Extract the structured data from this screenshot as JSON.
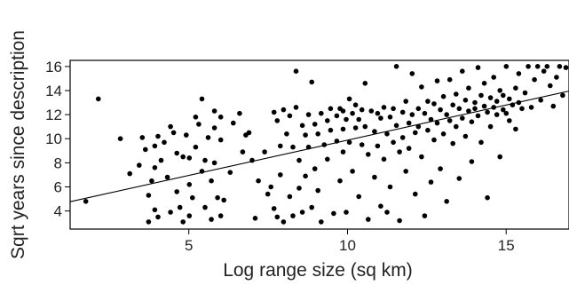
{
  "chart_data": {
    "type": "scatter",
    "title": "",
    "xlabel": "Log range size (sq km)",
    "ylabel": "Sqrt years since description",
    "xlim": [
      1.3,
      17.2
    ],
    "ylim": [
      2.5,
      16.5
    ],
    "x_ticks": [
      5,
      10,
      15
    ],
    "x_tick_labels": [
      "5",
      "10",
      "15"
    ],
    "y_ticks": [
      4,
      6,
      8,
      10,
      12,
      14,
      16
    ],
    "y_tick_labels": [
      "4",
      "6",
      "8",
      "10",
      "12",
      "14",
      "16"
    ],
    "grid": false,
    "legend": "none",
    "colors": {
      "points": "#000000",
      "axis": "#000000",
      "trendline": "#000000"
    },
    "trendline": {
      "x": [
        1.3,
        17.2
      ],
      "y": [
        4.77,
        13.95
      ]
    },
    "points": [
      [
        1.8,
        4.8
      ],
      [
        2.2,
        13.3
      ],
      [
        2.9,
        10.0
      ],
      [
        3.2,
        7.1
      ],
      [
        3.5,
        7.8
      ],
      [
        3.6,
        10.1
      ],
      [
        3.7,
        9.1
      ],
      [
        3.8,
        5.3
      ],
      [
        3.8,
        3.1
      ],
      [
        3.9,
        6.5
      ],
      [
        4.0,
        9.4
      ],
      [
        4.0,
        7.6
      ],
      [
        4.0,
        4.1
      ],
      [
        4.1,
        3.5
      ],
      [
        4.1,
        10.2
      ],
      [
        4.2,
        8.2
      ],
      [
        4.3,
        9.7
      ],
      [
        4.4,
        6.8
      ],
      [
        4.5,
        11.0
      ],
      [
        4.5,
        3.9
      ],
      [
        4.6,
        10.5
      ],
      [
        4.7,
        8.8
      ],
      [
        4.7,
        5.6
      ],
      [
        4.8,
        4.3
      ],
      [
        4.9,
        8.5
      ],
      [
        4.9,
        3.1
      ],
      [
        5.0,
        10.3
      ],
      [
        5.1,
        3.6
      ],
      [
        5.1,
        8.4
      ],
      [
        5.1,
        6.2
      ],
      [
        5.2,
        5.1
      ],
      [
        5.3,
        9.3
      ],
      [
        5.3,
        11.8
      ],
      [
        5.4,
        11.2
      ],
      [
        5.5,
        13.3
      ],
      [
        5.5,
        7.3
      ],
      [
        5.6,
        8.2
      ],
      [
        5.6,
        4.3
      ],
      [
        5.7,
        10.1
      ],
      [
        5.8,
        6.5
      ],
      [
        5.8,
        3.3
      ],
      [
        5.9,
        12.3
      ],
      [
        5.9,
        10.9
      ],
      [
        5.9,
        8.0
      ],
      [
        6.0,
        5.1
      ],
      [
        6.1,
        3.6
      ],
      [
        6.1,
        9.9
      ],
      [
        6.1,
        11.8
      ],
      [
        6.2,
        4.9
      ],
      [
        6.4,
        7.2
      ],
      [
        6.5,
        11.3
      ],
      [
        6.7,
        12.1
      ],
      [
        6.8,
        8.9
      ],
      [
        6.9,
        10.3
      ],
      [
        7.0,
        10.5
      ],
      [
        7.1,
        8.2
      ],
      [
        7.2,
        3.4
      ],
      [
        7.3,
        6.5
      ],
      [
        7.5,
        8.9
      ],
      [
        7.6,
        5.4
      ],
      [
        7.7,
        6.0
      ],
      [
        7.8,
        4.2
      ],
      [
        7.8,
        12.2
      ],
      [
        7.9,
        11.5
      ],
      [
        7.9,
        3.5
      ],
      [
        8.0,
        9.4
      ],
      [
        8.0,
        7.0
      ],
      [
        8.1,
        12.4
      ],
      [
        8.1,
        3.1
      ],
      [
        8.2,
        10.4
      ],
      [
        8.3,
        11.9
      ],
      [
        8.3,
        5.2
      ],
      [
        8.4,
        9.3
      ],
      [
        8.4,
        3.6
      ],
      [
        8.5,
        12.6
      ],
      [
        8.5,
        15.6
      ],
      [
        8.6,
        8.2
      ],
      [
        8.6,
        5.9
      ],
      [
        8.7,
        11.1
      ],
      [
        8.7,
        3.9
      ],
      [
        8.8,
        10.3
      ],
      [
        8.8,
        6.9
      ],
      [
        8.9,
        12.0
      ],
      [
        8.9,
        9.3
      ],
      [
        9.0,
        14.7
      ],
      [
        9.0,
        4.3
      ],
      [
        9.1,
        11.2
      ],
      [
        9.1,
        7.5
      ],
      [
        9.2,
        10.4
      ],
      [
        9.2,
        5.7
      ],
      [
        9.3,
        12.1
      ],
      [
        9.3,
        3.1
      ],
      [
        9.4,
        9.5
      ],
      [
        9.5,
        11.5
      ],
      [
        9.5,
        8.3
      ],
      [
        9.6,
        12.5
      ],
      [
        9.6,
        10.7
      ],
      [
        9.7,
        3.8
      ],
      [
        9.8,
        11.9
      ],
      [
        9.8,
        9.8
      ],
      [
        9.9,
        6.5
      ],
      [
        9.9,
        12.5
      ],
      [
        10.0,
        10.8
      ],
      [
        10.0,
        8.9
      ],
      [
        10.0,
        12.3
      ],
      [
        10.1,
        11.6
      ],
      [
        10.1,
        3.9
      ],
      [
        10.2,
        9.7
      ],
      [
        10.2,
        13.3
      ],
      [
        10.3,
        12.1
      ],
      [
        10.3,
        7.3
      ],
      [
        10.4,
        10.9
      ],
      [
        10.4,
        12.8
      ],
      [
        10.5,
        11.6
      ],
      [
        10.5,
        5.2
      ],
      [
        10.6,
        9.5
      ],
      [
        10.6,
        12.4
      ],
      [
        10.7,
        14.6
      ],
      [
        10.7,
        11.0
      ],
      [
        10.8,
        8.7
      ],
      [
        10.8,
        3.3
      ],
      [
        10.9,
        12.3
      ],
      [
        11.0,
        10.6
      ],
      [
        11.0,
        6.8
      ],
      [
        11.1,
        12.1
      ],
      [
        11.1,
        9.4
      ],
      [
        11.2,
        4.4
      ],
      [
        11.2,
        11.7
      ],
      [
        11.3,
        12.6
      ],
      [
        11.3,
        8.3
      ],
      [
        11.4,
        10.4
      ],
      [
        11.4,
        3.9
      ],
      [
        11.5,
        11.8
      ],
      [
        11.5,
        6.0
      ],
      [
        11.6,
        12.5
      ],
      [
        11.6,
        9.7
      ],
      [
        11.7,
        16.0
      ],
      [
        11.7,
        11.1
      ],
      [
        11.8,
        8.9
      ],
      [
        11.8,
        3.2
      ],
      [
        11.9,
        12.2
      ],
      [
        11.9,
        10.1
      ],
      [
        12.0,
        13.1
      ],
      [
        12.0,
        7.3
      ],
      [
        12.1,
        11.3
      ],
      [
        12.1,
        9.2
      ],
      [
        12.2,
        15.4
      ],
      [
        12.2,
        12.0
      ],
      [
        12.3,
        10.5
      ],
      [
        12.3,
        5.4
      ],
      [
        12.4,
        12.5
      ],
      [
        12.4,
        11.0
      ],
      [
        12.5,
        14.3
      ],
      [
        12.5,
        8.5
      ],
      [
        12.6,
        12.1
      ],
      [
        12.6,
        3.6
      ],
      [
        12.7,
        10.7
      ],
      [
        12.7,
        13.1
      ],
      [
        12.8,
        11.6
      ],
      [
        12.8,
        6.4
      ],
      [
        12.9,
        12.9
      ],
      [
        12.9,
        9.9
      ],
      [
        13.0,
        14.8
      ],
      [
        13.0,
        11.3
      ],
      [
        13.1,
        12.4
      ],
      [
        13.1,
        7.5
      ],
      [
        13.2,
        10.4
      ],
      [
        13.2,
        13.5
      ],
      [
        13.3,
        12.0
      ],
      [
        13.3,
        4.8
      ],
      [
        13.4,
        11.5
      ],
      [
        13.4,
        14.9
      ],
      [
        13.5,
        12.8
      ],
      [
        13.5,
        9.6
      ],
      [
        13.6,
        11.0
      ],
      [
        13.6,
        13.7
      ],
      [
        13.7,
        12.5
      ],
      [
        13.7,
        6.7
      ],
      [
        13.8,
        11.7
      ],
      [
        13.8,
        15.6
      ],
      [
        13.9,
        13.2
      ],
      [
        13.9,
        10.2
      ],
      [
        14.0,
        12.3
      ],
      [
        14.0,
        14.2
      ],
      [
        14.1,
        11.4
      ],
      [
        14.1,
        8.1
      ],
      [
        14.2,
        13.0
      ],
      [
        14.2,
        12.5
      ],
      [
        14.3,
        15.9
      ],
      [
        14.3,
        11.9
      ],
      [
        14.4,
        13.6
      ],
      [
        14.4,
        9.7
      ],
      [
        14.5,
        12.7
      ],
      [
        14.5,
        14.6
      ],
      [
        14.6,
        12.2
      ],
      [
        14.6,
        5.1
      ],
      [
        14.7,
        13.4
      ],
      [
        14.7,
        11.0
      ],
      [
        14.8,
        12.6
      ],
      [
        14.8,
        15.1
      ],
      [
        14.9,
        13.1
      ],
      [
        14.9,
        12.0
      ],
      [
        15.0,
        14.0
      ],
      [
        15.0,
        8.5
      ],
      [
        15.1,
        12.4
      ],
      [
        15.1,
        13.6
      ],
      [
        15.2,
        12.1
      ],
      [
        15.2,
        16.0
      ],
      [
        15.3,
        13.3
      ],
      [
        15.3,
        11.5
      ],
      [
        15.4,
        12.8
      ],
      [
        15.5,
        14.2
      ],
      [
        15.5,
        10.8
      ],
      [
        15.6,
        13.0
      ],
      [
        15.6,
        15.4
      ],
      [
        15.7,
        12.5
      ],
      [
        15.8,
        13.8
      ],
      [
        15.9,
        16.0
      ],
      [
        16.0,
        12.6
      ],
      [
        16.1,
        14.9
      ],
      [
        16.2,
        16.0
      ],
      [
        16.3,
        13.2
      ],
      [
        16.4,
        15.6
      ],
      [
        16.5,
        16.0
      ],
      [
        16.6,
        14.4
      ],
      [
        16.7,
        12.7
      ],
      [
        16.8,
        15.1
      ],
      [
        16.9,
        16.0
      ],
      [
        17.0,
        13.6
      ],
      [
        17.1,
        15.9
      ]
    ]
  }
}
